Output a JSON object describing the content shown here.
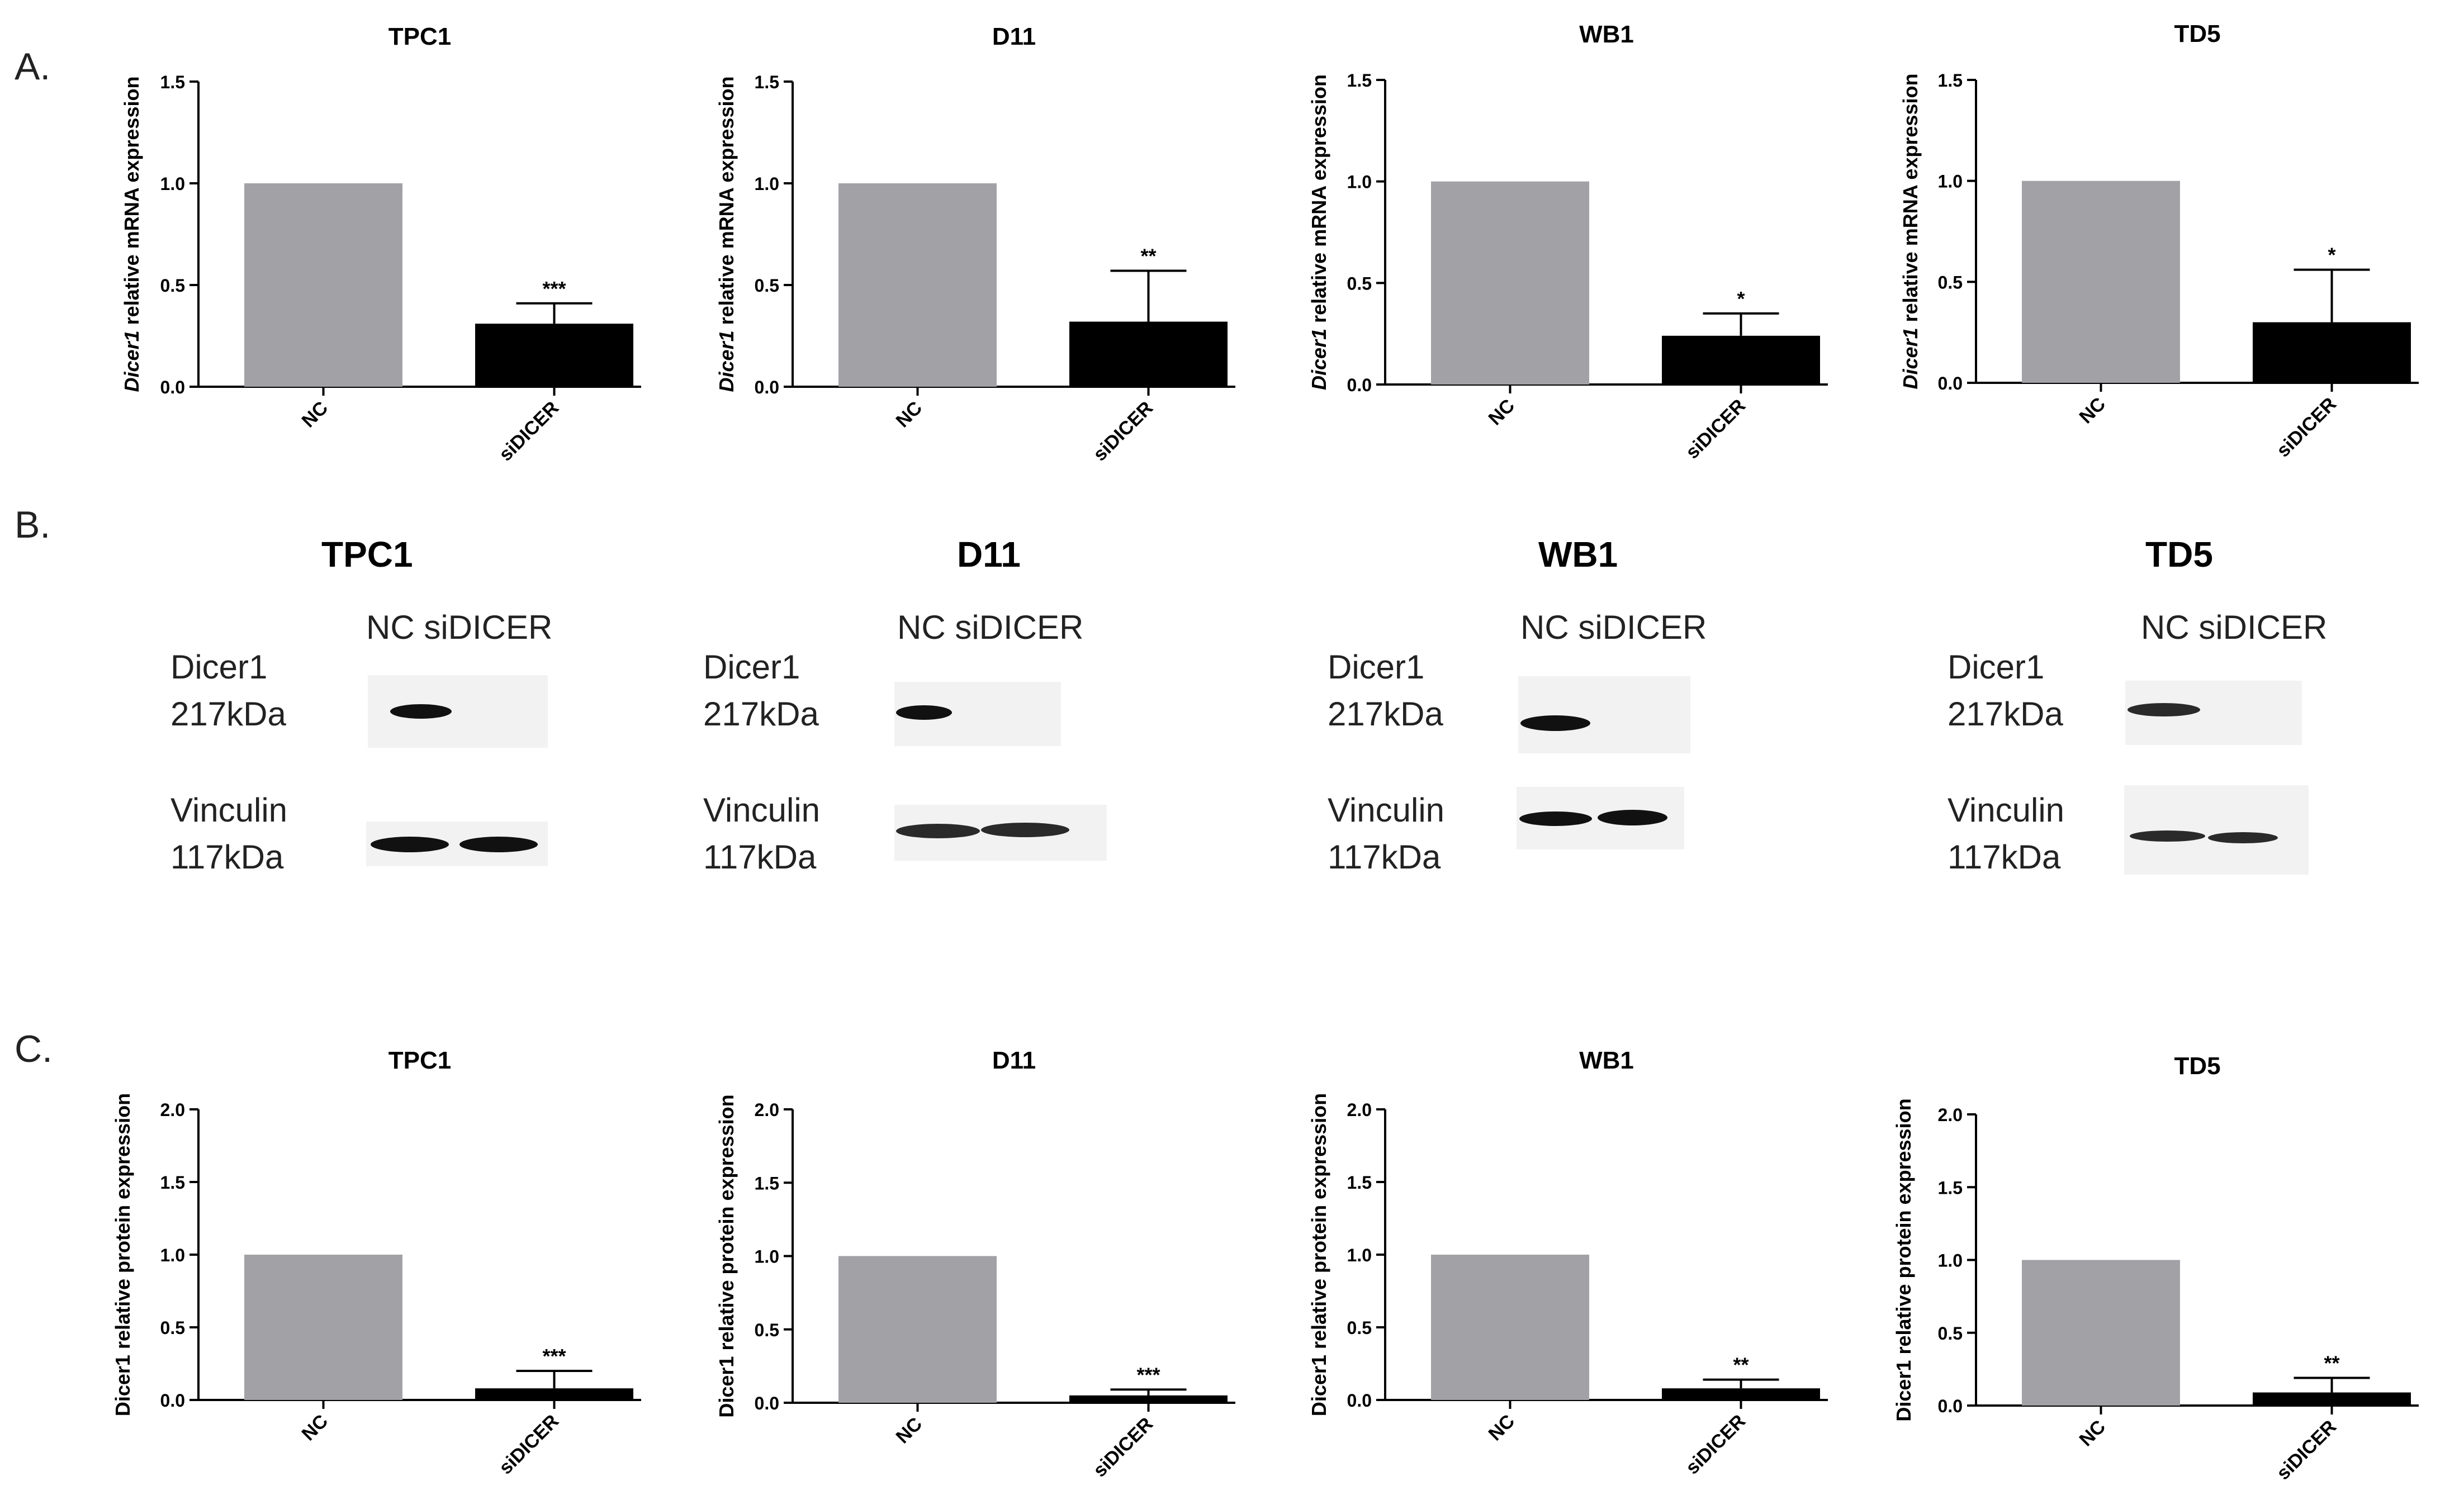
{
  "panels": {
    "A": "A.",
    "B": "B.",
    "C": "C."
  },
  "colors": {
    "nc_bar": "#a2a1a6",
    "sidicer_bar": "#000000"
  },
  "chart_data": [
    {
      "type": "bar",
      "panel": "A",
      "title": "TPC1",
      "ylabel_italic": "Dicer1",
      "ylabel_rest": " relative mRNA expression",
      "categories": [
        "NC",
        "siDICER"
      ],
      "values": [
        1.0,
        0.31
      ],
      "errors": [
        0,
        0.1
      ],
      "significance": [
        "",
        "***"
      ],
      "ylim": [
        0,
        1.5
      ],
      "yticks": [
        "0.0",
        "0.5",
        "1.0",
        "1.5"
      ],
      "ytick_values": [
        0,
        0.5,
        1.0,
        1.5
      ]
    },
    {
      "type": "bar",
      "panel": "A",
      "title": "D11",
      "ylabel_italic": "Dicer1",
      "ylabel_rest": " relative mRNA expression",
      "categories": [
        "NC",
        "siDICER"
      ],
      "values": [
        1.0,
        0.32
      ],
      "errors": [
        0,
        0.25
      ],
      "significance": [
        "",
        "**"
      ],
      "ylim": [
        0,
        1.5
      ],
      "yticks": [
        "0.0",
        "0.5",
        "1.0",
        "1.5"
      ],
      "ytick_values": [
        0,
        0.5,
        1.0,
        1.5
      ]
    },
    {
      "type": "bar",
      "panel": "A",
      "title": "WB1",
      "ylabel_italic": "Dicer1",
      "ylabel_rest": " relative mRNA expression",
      "categories": [
        "NC",
        "siDICER"
      ],
      "values": [
        1.0,
        0.24
      ],
      "errors": [
        0,
        0.11
      ],
      "significance": [
        "",
        "*"
      ],
      "ylim": [
        0,
        1.5
      ],
      "yticks": [
        "0.0",
        "0.5",
        "1.0",
        "1.5"
      ],
      "ytick_values": [
        0,
        0.5,
        1.0,
        1.5
      ]
    },
    {
      "type": "bar",
      "panel": "A",
      "title": "TD5",
      "ylabel_italic": "Dicer1",
      "ylabel_rest": " relative mRNA expression",
      "categories": [
        "NC",
        "siDICER"
      ],
      "values": [
        1.0,
        0.3
      ],
      "errors": [
        0,
        0.26
      ],
      "significance": [
        "",
        "*"
      ],
      "ylim": [
        0,
        1.5
      ],
      "yticks": [
        "0.0",
        "0.5",
        "1.0",
        "1.5"
      ],
      "ytick_values": [
        0,
        0.5,
        1.0,
        1.5
      ]
    },
    {
      "type": "bar",
      "panel": "C",
      "title": "TPC1",
      "ylabel_italic": "",
      "ylabel_rest": "Dicer1 relative protein expression",
      "categories": [
        "NC",
        "siDICER"
      ],
      "values": [
        1.0,
        0.08
      ],
      "errors": [
        0,
        0.12
      ],
      "significance": [
        "",
        "***"
      ],
      "ylim": [
        0,
        2.0
      ],
      "yticks": [
        "0.0",
        "0.5",
        "1.0",
        "1.5",
        "2.0"
      ],
      "ytick_values": [
        0,
        0.5,
        1.0,
        1.5,
        2.0
      ]
    },
    {
      "type": "bar",
      "panel": "C",
      "title": "D11",
      "ylabel_italic": "",
      "ylabel_rest": "Dicer1 relative protein expression",
      "categories": [
        "NC",
        "siDICER"
      ],
      "values": [
        1.0,
        0.05
      ],
      "errors": [
        0,
        0.04
      ],
      "significance": [
        "",
        "***"
      ],
      "ylim": [
        0,
        2.0
      ],
      "yticks": [
        "0.0",
        "0.5",
        "1.0",
        "1.5",
        "2.0"
      ],
      "ytick_values": [
        0,
        0.5,
        1.0,
        1.5,
        2.0
      ]
    },
    {
      "type": "bar",
      "panel": "C",
      "title": "WB1",
      "ylabel_italic": "",
      "ylabel_rest": "Dicer1 relative protein expression",
      "categories": [
        "NC",
        "siDICER"
      ],
      "values": [
        1.0,
        0.08
      ],
      "errors": [
        0,
        0.06
      ],
      "significance": [
        "",
        "**"
      ],
      "ylim": [
        0,
        2.0
      ],
      "yticks": [
        "0.0",
        "0.5",
        "1.0",
        "1.5",
        "2.0"
      ],
      "ytick_values": [
        0,
        0.5,
        1.0,
        1.5,
        2.0
      ]
    },
    {
      "type": "bar",
      "panel": "C",
      "title": "TD5",
      "ylabel_italic": "",
      "ylabel_rest": "Dicer1 relative protein expression",
      "categories": [
        "NC",
        "siDICER"
      ],
      "values": [
        1.0,
        0.09
      ],
      "errors": [
        0,
        0.1
      ],
      "significance": [
        "",
        "**"
      ],
      "ylim": [
        0,
        2.0
      ],
      "yticks": [
        "0.0",
        "0.5",
        "1.0",
        "1.5",
        "2.0"
      ],
      "ytick_values": [
        0,
        0.5,
        1.0,
        1.5,
        2.0
      ]
    }
  ],
  "blots": [
    {
      "title": "TPC1",
      "lanes": "NC siDICER",
      "dicer_label": {
        "name": "Dicer1",
        "size": "217kDa"
      },
      "vinculin_label": {
        "name": "Vinculin",
        "size": "117kDa"
      },
      "dicer_levels": [
        1.0,
        0.0
      ],
      "vinculin_levels": [
        1.0,
        0.9
      ]
    },
    {
      "title": "D11",
      "lanes": "NC siDICER",
      "dicer_label": {
        "name": "Dicer1",
        "size": "217kDa"
      },
      "vinculin_label": {
        "name": "Vinculin",
        "size": "117kDa"
      },
      "dicer_levels": [
        1.0,
        0.0
      ],
      "vinculin_levels": [
        0.9,
        0.9
      ]
    },
    {
      "title": "WB1",
      "lanes": "NC siDICER",
      "dicer_label": {
        "name": "Dicer1",
        "size": "217kDa"
      },
      "vinculin_label": {
        "name": "Vinculin",
        "size": "117kDa"
      },
      "dicer_levels": [
        1.0,
        0.0
      ],
      "vinculin_levels": [
        0.9,
        0.9
      ]
    },
    {
      "title": "TD5",
      "lanes": "NC siDICER",
      "dicer_label": {
        "name": "Dicer1",
        "size": "217kDa"
      },
      "vinculin_label": {
        "name": "Vinculin",
        "size": "117kDa"
      },
      "dicer_levels": [
        0.8,
        0.0
      ],
      "vinculin_levels": [
        0.8,
        0.8
      ]
    }
  ]
}
